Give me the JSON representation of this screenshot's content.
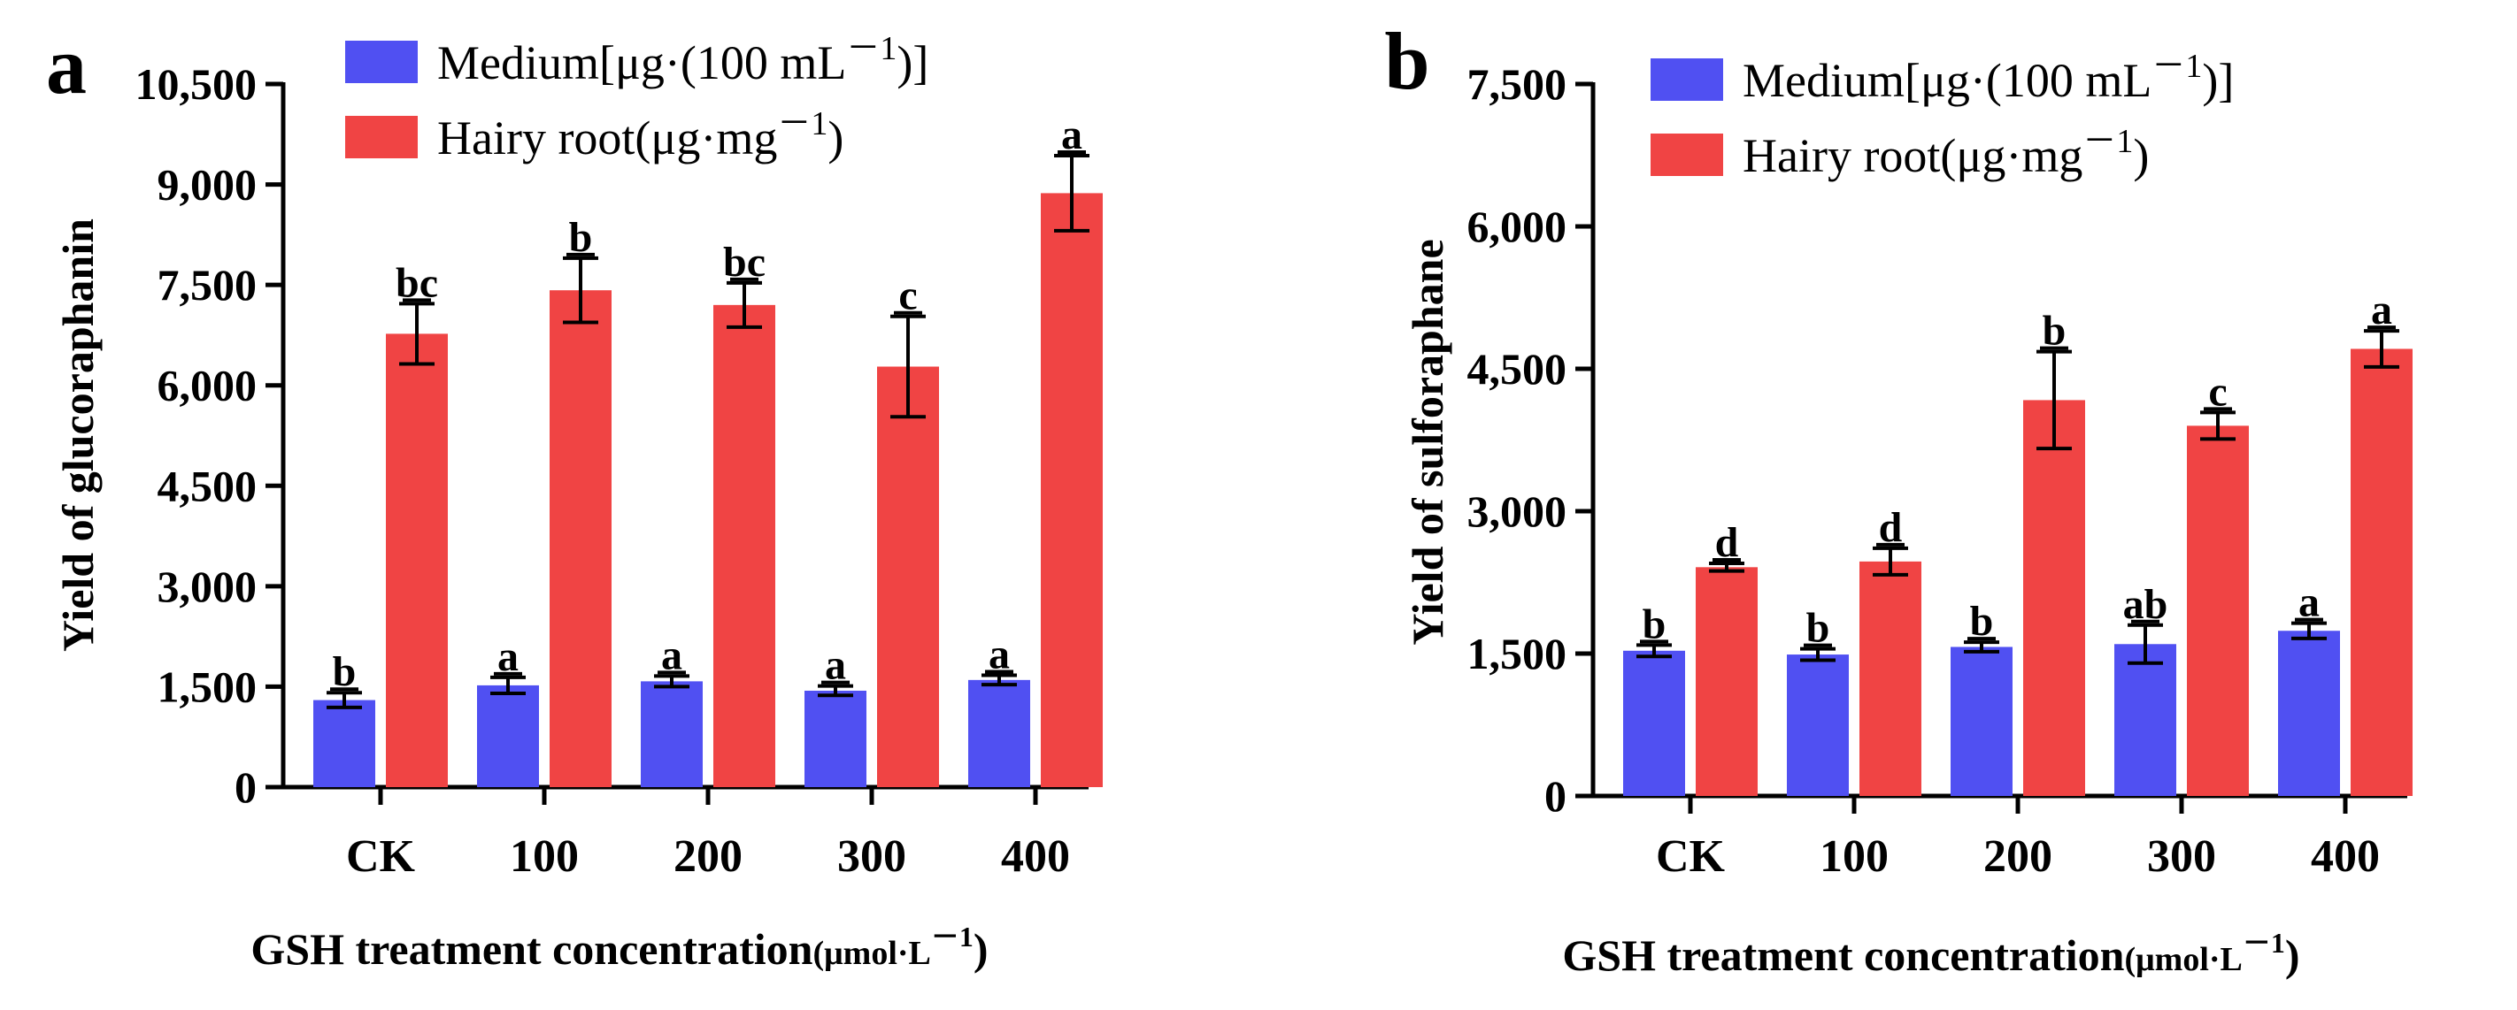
{
  "colors": {
    "medium": "#5050f2",
    "hairy_root": "#f04444"
  },
  "chart_data": [
    {
      "type": "bar",
      "panel": "a",
      "title": "",
      "ylabel": "Yield of glucoraphanin",
      "xlabel_main": "GSH treatment concentration",
      "xlabel_unit": "(μmol·L",
      "xlabel_exp": "－1",
      "xlabel_close": ")",
      "categories": [
        "CK",
        "100",
        "200",
        "300",
        "400"
      ],
      "ylim": [
        0,
        10500
      ],
      "yticks": [
        0,
        1500,
        3000,
        4500,
        6000,
        7500,
        9000,
        10500
      ],
      "ytick_labels": [
        "0",
        "1,500",
        "3,000",
        "4,500",
        "6,000",
        "7,500",
        "9,000",
        "10,500"
      ],
      "legend": [
        {
          "pre": "Medium[μg·(100 mL",
          "sup": "－1",
          "post": ")]",
          "color": "#5050f2"
        },
        {
          "pre": "Hairy root(μg·mg",
          "sup": "－1",
          "post": ")",
          "color": "#f04444"
        }
      ],
      "series": [
        {
          "name": "Medium",
          "values": [
            1300,
            1520,
            1580,
            1440,
            1600
          ],
          "errors": [
            110,
            120,
            80,
            70,
            70
          ],
          "letters": [
            "b",
            "a",
            "a",
            "a",
            "a"
          ]
        },
        {
          "name": "Hairy root",
          "values": [
            6770,
            7420,
            7200,
            6280,
            8870
          ],
          "errors": [
            450,
            480,
            330,
            750,
            560
          ],
          "letters": [
            "bc",
            "b",
            "bc",
            "c",
            "a"
          ]
        }
      ]
    },
    {
      "type": "bar",
      "panel": "b",
      "title": "",
      "ylabel": "Yield of sulforaphane",
      "xlabel_main": "GSH treatment concentration",
      "xlabel_unit": "(μmol·L",
      "xlabel_exp": "－1",
      "xlabel_close": ")",
      "categories": [
        "CK",
        "100",
        "200",
        "300",
        "400"
      ],
      "ylim": [
        0,
        7500
      ],
      "yticks": [
        0,
        1500,
        3000,
        4500,
        6000,
        7500
      ],
      "ytick_labels": [
        "0",
        "1,500",
        "3,000",
        "4,500",
        "6,000",
        "7,500"
      ],
      "legend": [
        {
          "pre": "Medium[μg·(100 mL",
          "sup": "－1",
          "post": ")]",
          "color": "#5050f2"
        },
        {
          "pre": "Hairy root(μg·mg",
          "sup": "－1",
          "post": ")",
          "color": "#f04444"
        }
      ],
      "series": [
        {
          "name": "Medium",
          "values": [
            1530,
            1490,
            1570,
            1600,
            1740
          ],
          "errors": [
            60,
            60,
            50,
            200,
            80
          ],
          "letters": [
            "b",
            "b",
            "b",
            "ab",
            "a"
          ]
        },
        {
          "name": "Hairy root",
          "values": [
            2410,
            2470,
            4170,
            3900,
            4710
          ],
          "errors": [
            40,
            140,
            510,
            140,
            190
          ],
          "letters": [
            "d",
            "d",
            "b",
            "c",
            "a"
          ]
        }
      ]
    }
  ]
}
